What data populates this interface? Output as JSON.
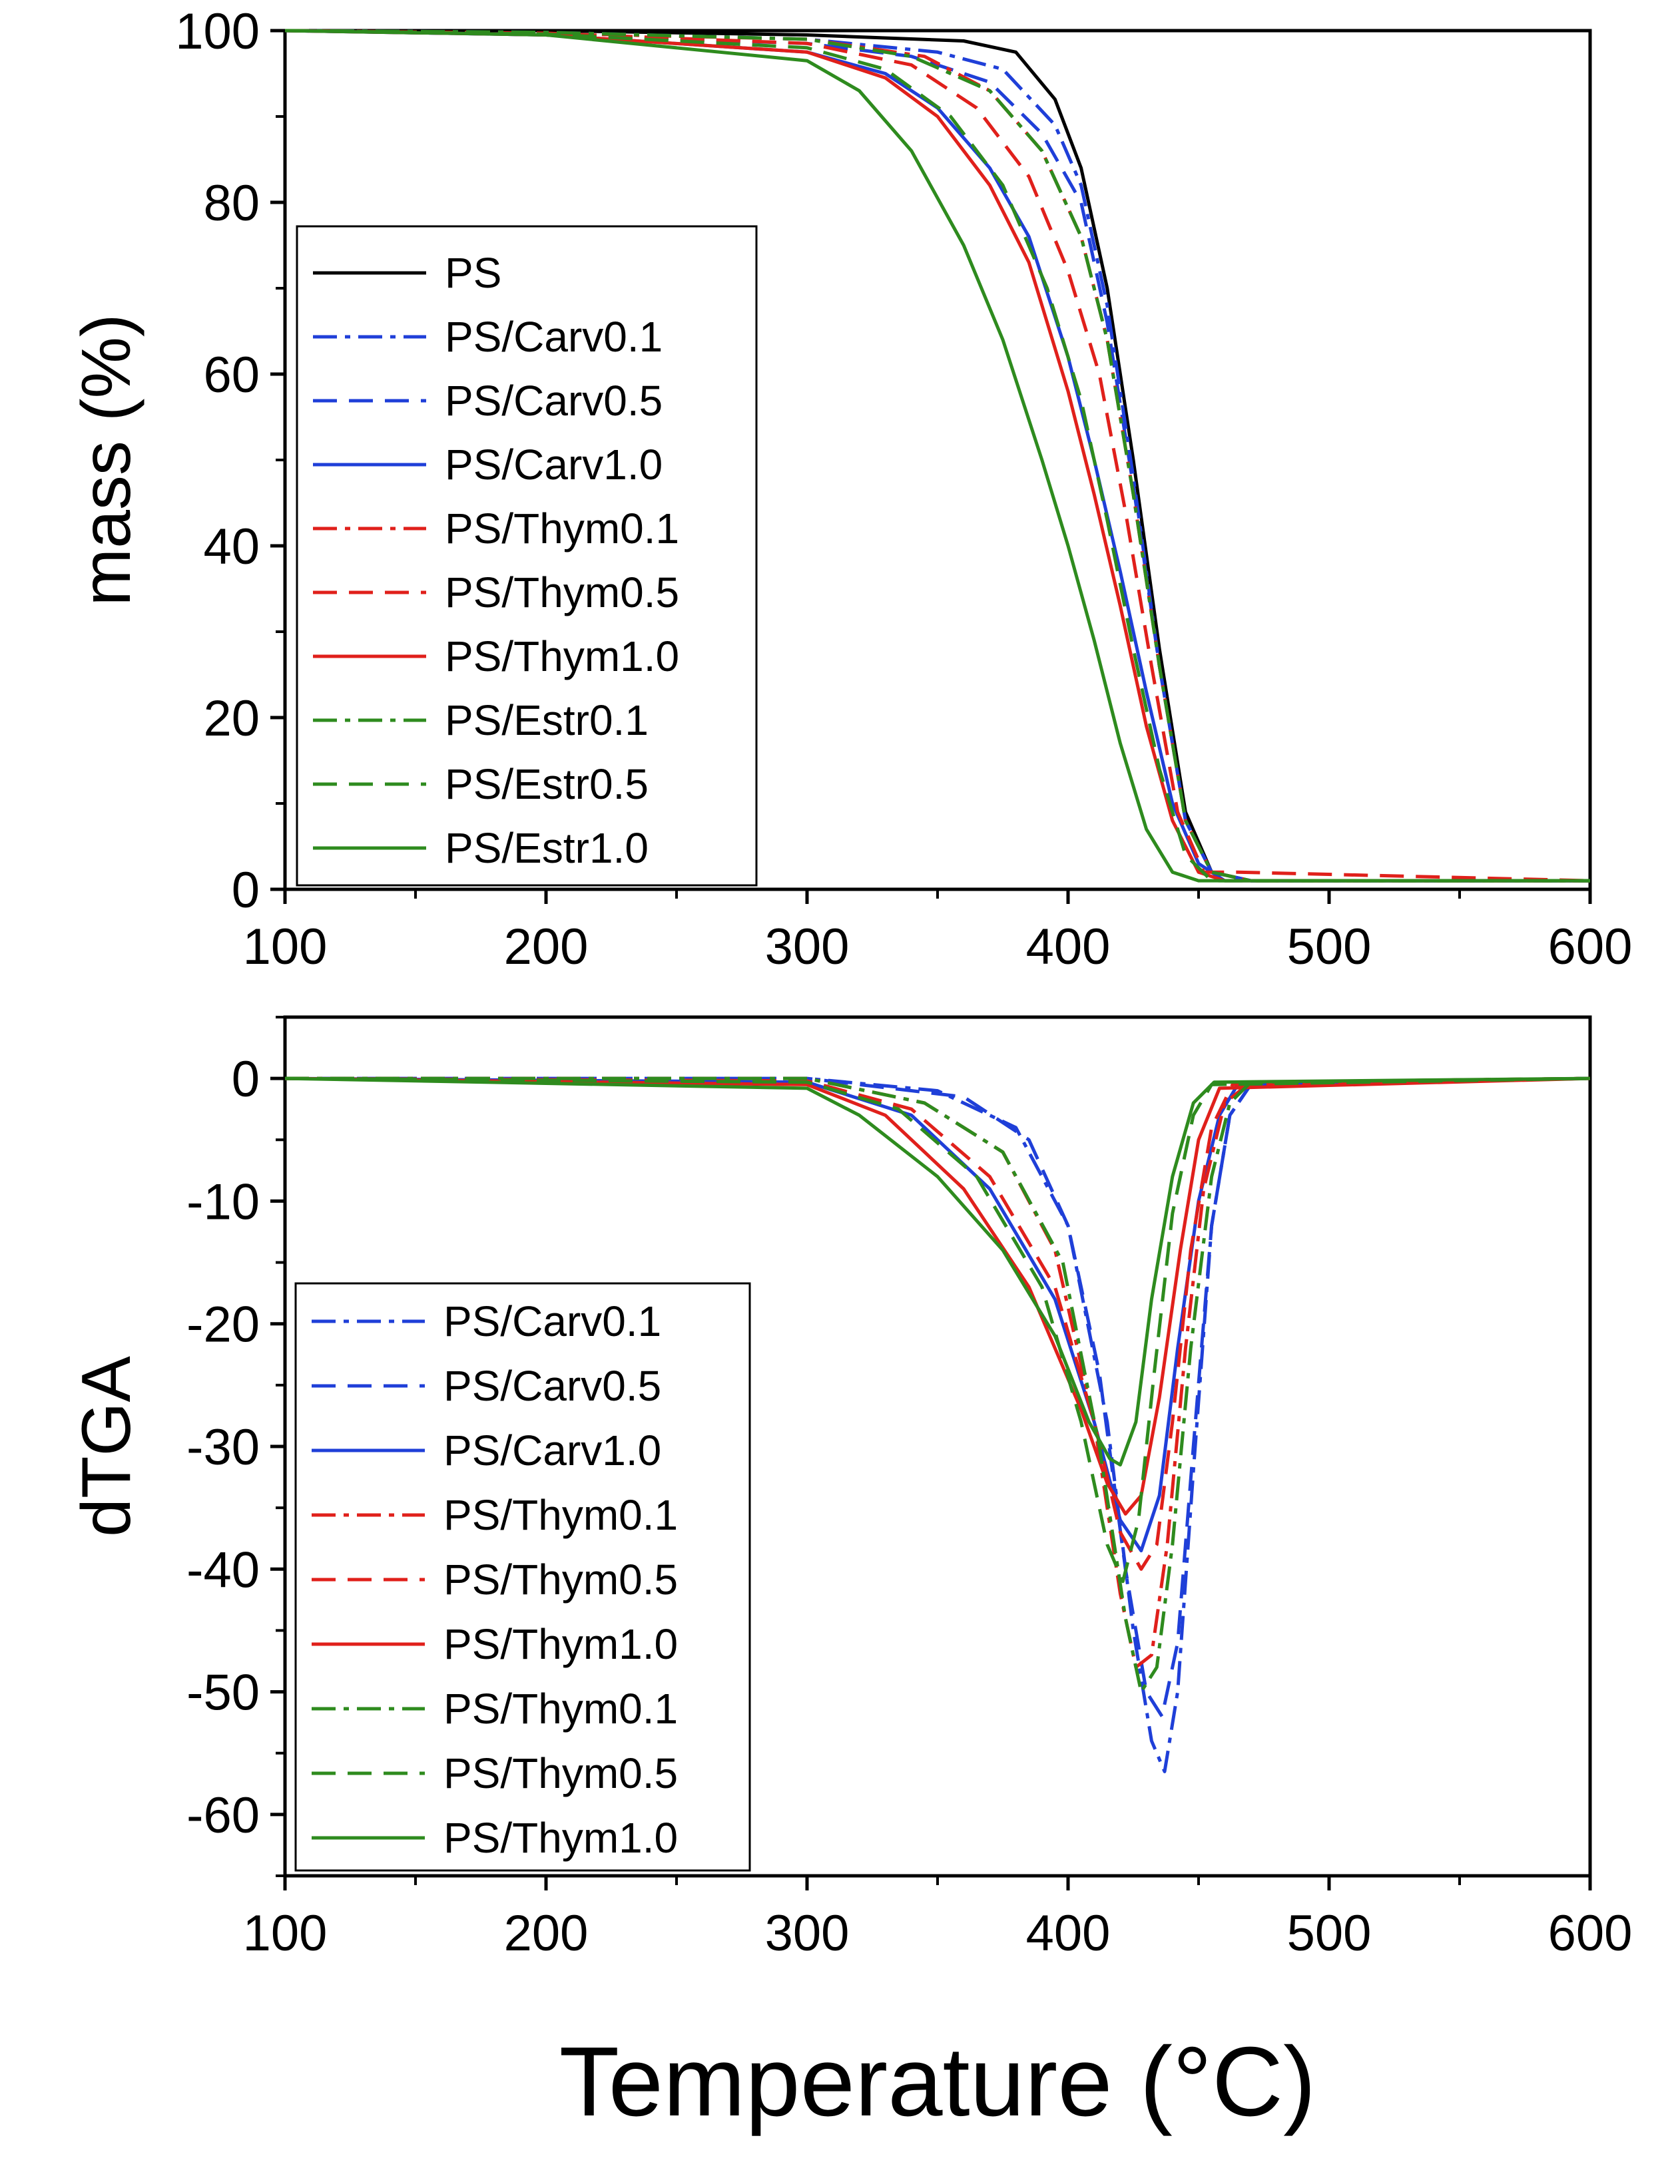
{
  "chart_data": [
    {
      "type": "line",
      "panel": "top",
      "ylabel": "mass (%)",
      "xlabel": "",
      "xlim": [
        100,
        600
      ],
      "ylim": [
        0,
        100
      ],
      "x_ticks": [
        "100",
        "200",
        "300",
        "400",
        "500",
        "600"
      ],
      "y_ticks": [
        "0",
        "20",
        "40",
        "60",
        "80",
        "100"
      ],
      "legend_position": "middle-left",
      "series": [
        {
          "name": "PS",
          "color": "#000000",
          "dash": "solid",
          "x": [
            100,
            200,
            300,
            360,
            380,
            395,
            405,
            415,
            425,
            435,
            445,
            455,
            470,
            600
          ],
          "y": [
            100,
            100,
            99.5,
            98.8,
            97.5,
            92,
            84,
            70,
            50,
            28,
            9,
            2,
            1,
            1
          ]
        },
        {
          "name": "PS/Carv0.1",
          "color": "#1f3fd8",
          "dash": "dashdot",
          "x": [
            100,
            200,
            300,
            350,
            375,
            395,
            405,
            415,
            425,
            435,
            445,
            455,
            470,
            600
          ],
          "y": [
            100,
            99.8,
            99,
            97.5,
            95.5,
            89,
            82,
            68,
            48,
            26,
            8,
            2,
            1,
            1
          ]
        },
        {
          "name": "PS/Carv0.5",
          "color": "#1f3fd8",
          "dash": "dashed",
          "x": [
            100,
            200,
            300,
            340,
            370,
            390,
            405,
            415,
            425,
            435,
            445,
            455,
            470,
            600
          ],
          "y": [
            100,
            99.5,
            98.5,
            97,
            94,
            88,
            80,
            66,
            47,
            26,
            8,
            2,
            1,
            1
          ]
        },
        {
          "name": "PS/Carv1.0",
          "color": "#1f3fd8",
          "dash": "solid",
          "x": [
            100,
            200,
            300,
            330,
            350,
            370,
            385,
            400,
            410,
            420,
            430,
            440,
            450,
            460,
            600
          ],
          "y": [
            100,
            99.5,
            97.5,
            95,
            91,
            84,
            76,
            62,
            50,
            37,
            23,
            10,
            3,
            1,
            1
          ]
        },
        {
          "name": "PS/Thym0.1",
          "color": "#e0201b",
          "dash": "dashdot",
          "x": [
            100,
            200,
            300,
            345,
            370,
            390,
            405,
            415,
            425,
            435,
            445,
            455,
            470,
            600
          ],
          "y": [
            100,
            99.7,
            99,
            97,
            93,
            86,
            76,
            64,
            46,
            26,
            8,
            2,
            1,
            1
          ]
        },
        {
          "name": "PS/Thym0.5",
          "color": "#e0201b",
          "dash": "dashed",
          "x": [
            100,
            200,
            300,
            340,
            365,
            385,
            400,
            412,
            422,
            432,
            442,
            452,
            465,
            600
          ],
          "y": [
            100,
            99.7,
            98.5,
            96,
            91,
            83,
            72,
            60,
            44,
            26,
            9,
            2,
            2,
            1
          ]
        },
        {
          "name": "PS/Thym1.0",
          "color": "#e0201b",
          "dash": "solid",
          "x": [
            100,
            200,
            300,
            330,
            350,
            370,
            385,
            400,
            410,
            420,
            430,
            440,
            450,
            460,
            600
          ],
          "y": [
            100,
            99.5,
            97.5,
            94.5,
            90,
            82,
            73,
            58,
            46,
            33,
            19,
            8,
            2,
            1,
            1
          ]
        },
        {
          "name": "PS/Estr0.1",
          "color": "#2e8b1e",
          "dash": "dashdot",
          "x": [
            100,
            200,
            300,
            340,
            370,
            390,
            405,
            415,
            425,
            435,
            445,
            455,
            470,
            600
          ],
          "y": [
            100,
            99.8,
            99,
            97,
            93,
            86,
            76,
            64,
            46,
            26,
            8,
            2,
            1,
            1
          ]
        },
        {
          "name": "PS/Estr0.5",
          "color": "#2e8b1e",
          "dash": "dashed",
          "x": [
            100,
            200,
            300,
            330,
            355,
            375,
            392,
            405,
            415,
            425,
            435,
            445,
            455,
            600
          ],
          "y": [
            100,
            99.6,
            98,
            95.5,
            90,
            82,
            70,
            57,
            43,
            28,
            14,
            4,
            1,
            1
          ]
        },
        {
          "name": "PS/Estr1.0",
          "color": "#2e8b1e",
          "dash": "solid",
          "x": [
            100,
            200,
            300,
            320,
            340,
            360,
            375,
            390,
            400,
            410,
            420,
            430,
            440,
            450,
            600
          ],
          "y": [
            100,
            99.5,
            96.5,
            93,
            86,
            75,
            64,
            50,
            40,
            29,
            17,
            7,
            2,
            1,
            1
          ]
        }
      ]
    },
    {
      "type": "line",
      "panel": "bottom",
      "ylabel": "dTGA",
      "xlabel": "Temperature (°C)",
      "xlim": [
        100,
        600
      ],
      "ylim": [
        -65,
        5
      ],
      "x_ticks": [
        "100",
        "200",
        "300",
        "400",
        "500",
        "600"
      ],
      "y_ticks": [
        "0",
        "-10",
        "-20",
        "-30",
        "-40",
        "-50",
        "-60"
      ],
      "legend_position": "lower-left",
      "series": [
        {
          "name": "PS/Carv0.1",
          "color": "#1f3fd8",
          "dash": "dashdot",
          "x": [
            100,
            300,
            350,
            380,
            400,
            415,
            425,
            432,
            437,
            442,
            448,
            455,
            462,
            470,
            600
          ],
          "y": [
            0,
            0,
            -1,
            -4,
            -12,
            -28,
            -45,
            -54,
            -56.5,
            -50,
            -32,
            -12,
            -3,
            -0.5,
            0
          ]
        },
        {
          "name": "PS/Carv0.5",
          "color": "#1f3fd8",
          "dash": "dashed",
          "x": [
            100,
            300,
            360,
            385,
            400,
            412,
            422,
            430,
            436,
            442,
            448,
            455,
            462,
            470,
            600
          ],
          "y": [
            0,
            0,
            -1.5,
            -5,
            -12,
            -24,
            -40,
            -50,
            -52,
            -46,
            -30,
            -12,
            -3,
            -0.5,
            0
          ]
        },
        {
          "name": "PS/Carv1.0",
          "color": "#1f3fd8",
          "dash": "solid",
          "x": [
            100,
            300,
            340,
            370,
            395,
            410,
            420,
            428,
            435,
            442,
            450,
            458,
            465,
            600
          ],
          "y": [
            0,
            -0.3,
            -3,
            -9,
            -18,
            -28,
            -36,
            -38.5,
            -34,
            -22,
            -10,
            -3,
            -0.5,
            0
          ]
        },
        {
          "name": "PS/Thym0.1",
          "color": "#e0201b",
          "dash": "dashdot",
          "x": [
            100,
            300,
            345,
            375,
            395,
            410,
            420,
            426,
            432,
            438,
            445,
            452,
            460,
            470,
            600
          ],
          "y": [
            0,
            0,
            -2,
            -6,
            -14,
            -28,
            -42,
            -48,
            -47,
            -38,
            -22,
            -9,
            -2,
            -0.3,
            0
          ]
        },
        {
          "name": "PS/Thym0.5",
          "color": "#e0201b",
          "dash": "dashed",
          "x": [
            100,
            300,
            340,
            370,
            395,
            410,
            420,
            428,
            434,
            440,
            447,
            455,
            463,
            600
          ],
          "y": [
            0,
            -0.2,
            -2.5,
            -8,
            -17,
            -28,
            -37,
            -40,
            -38,
            -28,
            -14,
            -4,
            -0.5,
            0
          ]
        },
        {
          "name": "PS/Thym1.0",
          "color": "#e0201b",
          "dash": "solid",
          "x": [
            100,
            300,
            330,
            360,
            385,
            405,
            415,
            422,
            428,
            435,
            443,
            450,
            458,
            600
          ],
          "y": [
            0,
            -0.5,
            -3,
            -9,
            -17,
            -27,
            -33,
            -35.5,
            -34,
            -26,
            -14,
            -5,
            -0.8,
            0
          ]
        },
        {
          "name": "PS/Thym0.1",
          "color": "#2e8b1e",
          "dash": "dashdot",
          "x": [
            100,
            300,
            345,
            375,
            398,
            412,
            422,
            428,
            434,
            440,
            447,
            455,
            462,
            470,
            600
          ],
          "y": [
            0,
            0,
            -2,
            -6,
            -15,
            -30,
            -44,
            -50,
            -48,
            -38,
            -22,
            -8,
            -2,
            -0.3,
            0
          ]
        },
        {
          "name": "PS/Thym0.5",
          "color": "#2e8b1e",
          "dash": "dashed",
          "x": [
            100,
            300,
            335,
            365,
            390,
            405,
            415,
            421,
            427,
            433,
            440,
            448,
            455,
            600
          ],
          "y": [
            0,
            -0.3,
            -2.5,
            -8,
            -17,
            -28,
            -38,
            -41,
            -36,
            -24,
            -11,
            -3,
            -0.5,
            0
          ]
        },
        {
          "name": "PS/Thym1.0",
          "color": "#2e8b1e",
          "dash": "solid",
          "x": [
            100,
            300,
            320,
            350,
            375,
            395,
            408,
            416,
            420,
            426,
            432,
            440,
            448,
            456,
            600
          ],
          "y": [
            0,
            -0.8,
            -3,
            -8,
            -14,
            -21,
            -28,
            -31,
            -31.5,
            -28,
            -18,
            -8,
            -2,
            -0.3,
            0
          ]
        }
      ]
    }
  ]
}
